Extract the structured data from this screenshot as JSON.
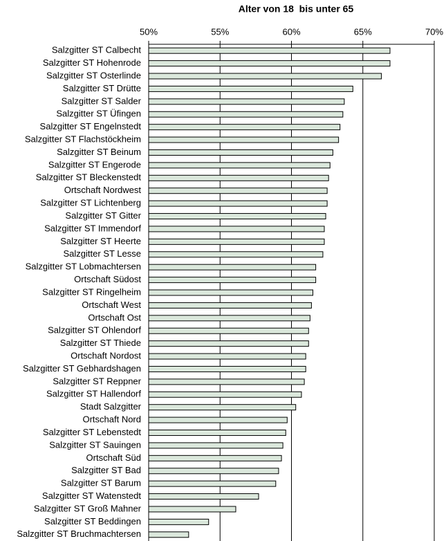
{
  "chart_data": {
    "type": "bar",
    "orientation": "horizontal",
    "title": "Alter von 18  bis unter 65",
    "categories": [
      "Salzgitter ST Calbecht",
      "Salzgitter ST Hohenrode",
      "Salzgitter ST Osterlinde",
      "Salzgitter ST Drütte",
      "Salzgitter ST Salder",
      "Salzgitter ST Üfingen",
      "Salzgitter ST Engelnstedt",
      "Salzgitter ST Flachstöckheim",
      "Salzgitter ST Beinum",
      "Salzgitter ST Engerode",
      "Salzgitter ST Bleckenstedt",
      "Ortschaft Nordwest",
      "Salzgitter ST Lichtenberg",
      "Salzgitter ST Gitter",
      "Salzgitter ST Immendorf",
      "Salzgitter ST Heerte",
      "Salzgitter ST Lesse",
      "Salzgitter ST Lobmachtersen",
      "Ortschaft Südost",
      "Salzgitter ST Ringelheim",
      "Ortschaft West",
      "Ortschaft Ost",
      "Salzgitter ST Ohlendorf",
      "Salzgitter ST Thiede",
      "Ortschaft Nordost",
      "Salzgitter ST Gebhardshagen",
      "Salzgitter ST Reppner",
      "Salzgitter ST Hallendorf",
      "Stadt Salzgitter",
      "Ortschaft Nord",
      "Salzgitter ST Lebenstedt",
      "Salzgitter ST Sauingen",
      "Ortschaft Süd",
      "Salzgitter ST Bad",
      "Salzgitter ST Barum",
      "Salzgitter ST Watenstedt",
      "Salzgitter ST Groß Mahner",
      "Salzgitter ST Beddingen",
      "Salzgitter ST Bruchmachtersen"
    ],
    "values": [
      66.9,
      66.9,
      66.3,
      64.3,
      63.7,
      63.6,
      63.4,
      63.3,
      62.9,
      62.7,
      62.6,
      62.5,
      62.5,
      62.4,
      62.3,
      62.3,
      62.2,
      61.7,
      61.7,
      61.5,
      61.4,
      61.3,
      61.2,
      61.2,
      61.0,
      61.0,
      60.9,
      60.7,
      60.3,
      59.7,
      59.6,
      59.4,
      59.3,
      59.1,
      58.9,
      57.7,
      56.1,
      54.2,
      52.8
    ],
    "color": "#dbe8dc",
    "xlim": [
      50,
      70
    ],
    "xticks": [
      {
        "value": 50,
        "label": "50%"
      },
      {
        "value": 55,
        "label": "55%"
      },
      {
        "value": 60,
        "label": "60%"
      },
      {
        "value": 65,
        "label": "65%"
      },
      {
        "value": 70,
        "label": "70%"
      }
    ],
    "grid": true
  }
}
